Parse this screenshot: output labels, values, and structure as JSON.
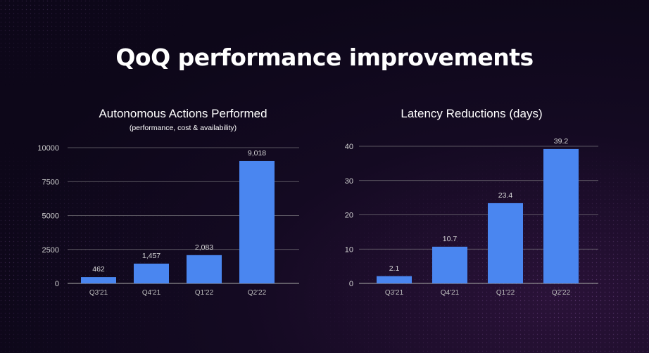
{
  "slide": {
    "title": "QoQ performance improvements"
  },
  "colors": {
    "bar": "#4a86f0",
    "grid": "#9a9a9a",
    "background": "#0d0719"
  },
  "chart_data": [
    {
      "type": "bar",
      "title": "Autonomous Actions Performed",
      "subtitle": "(performance, cost & availability)",
      "categories": [
        "Q3'21",
        "Q4'21",
        "Q1'22",
        "Q2'22"
      ],
      "values": [
        462,
        1457,
        2083,
        9018
      ],
      "value_labels": [
        "462",
        "1,457",
        "2,083",
        "9,018"
      ],
      "yticks": [
        0,
        2500,
        5000,
        7500,
        10000
      ],
      "ytick_labels": [
        "0",
        "2500",
        "5000",
        "7500",
        "10000"
      ],
      "ylim": [
        0,
        10000
      ],
      "xlabel": "",
      "ylabel": "",
      "grid": true
    },
    {
      "type": "bar",
      "title": "Latency Reductions (days)",
      "categories": [
        "Q3'21",
        "Q4'21",
        "Q1'22",
        "Q2'22"
      ],
      "values": [
        2.1,
        10.7,
        23.4,
        39.2
      ],
      "value_labels": [
        "2.1",
        "10.7",
        "23.4",
        "39.2"
      ],
      "yticks": [
        0,
        10,
        20,
        30,
        40
      ],
      "ytick_labels": [
        "0",
        "10",
        "20",
        "30",
        "40"
      ],
      "ylim": [
        0,
        40
      ],
      "xlabel": "",
      "ylabel": "",
      "grid": true
    }
  ]
}
